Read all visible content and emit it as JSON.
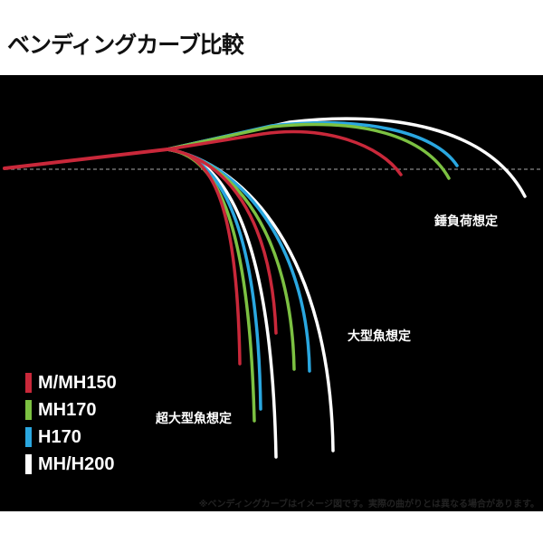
{
  "title": "ベンディングカーブ比較",
  "labels": {
    "light": "錘負荷想定",
    "large": "大型魚想定",
    "xlarge": "超大型魚想定"
  },
  "legend": [
    {
      "label": "M/MH150",
      "color": "#c9283a"
    },
    {
      "label": "MH170",
      "color": "#7cc142"
    },
    {
      "label": "H170",
      "color": "#2aa7e0"
    },
    {
      "label": "MH/H200",
      "color": "#ffffff"
    }
  ],
  "note": "※ベンディングカーブはイメージ図です。実際の曲がりとは異なる場合があります。"
}
